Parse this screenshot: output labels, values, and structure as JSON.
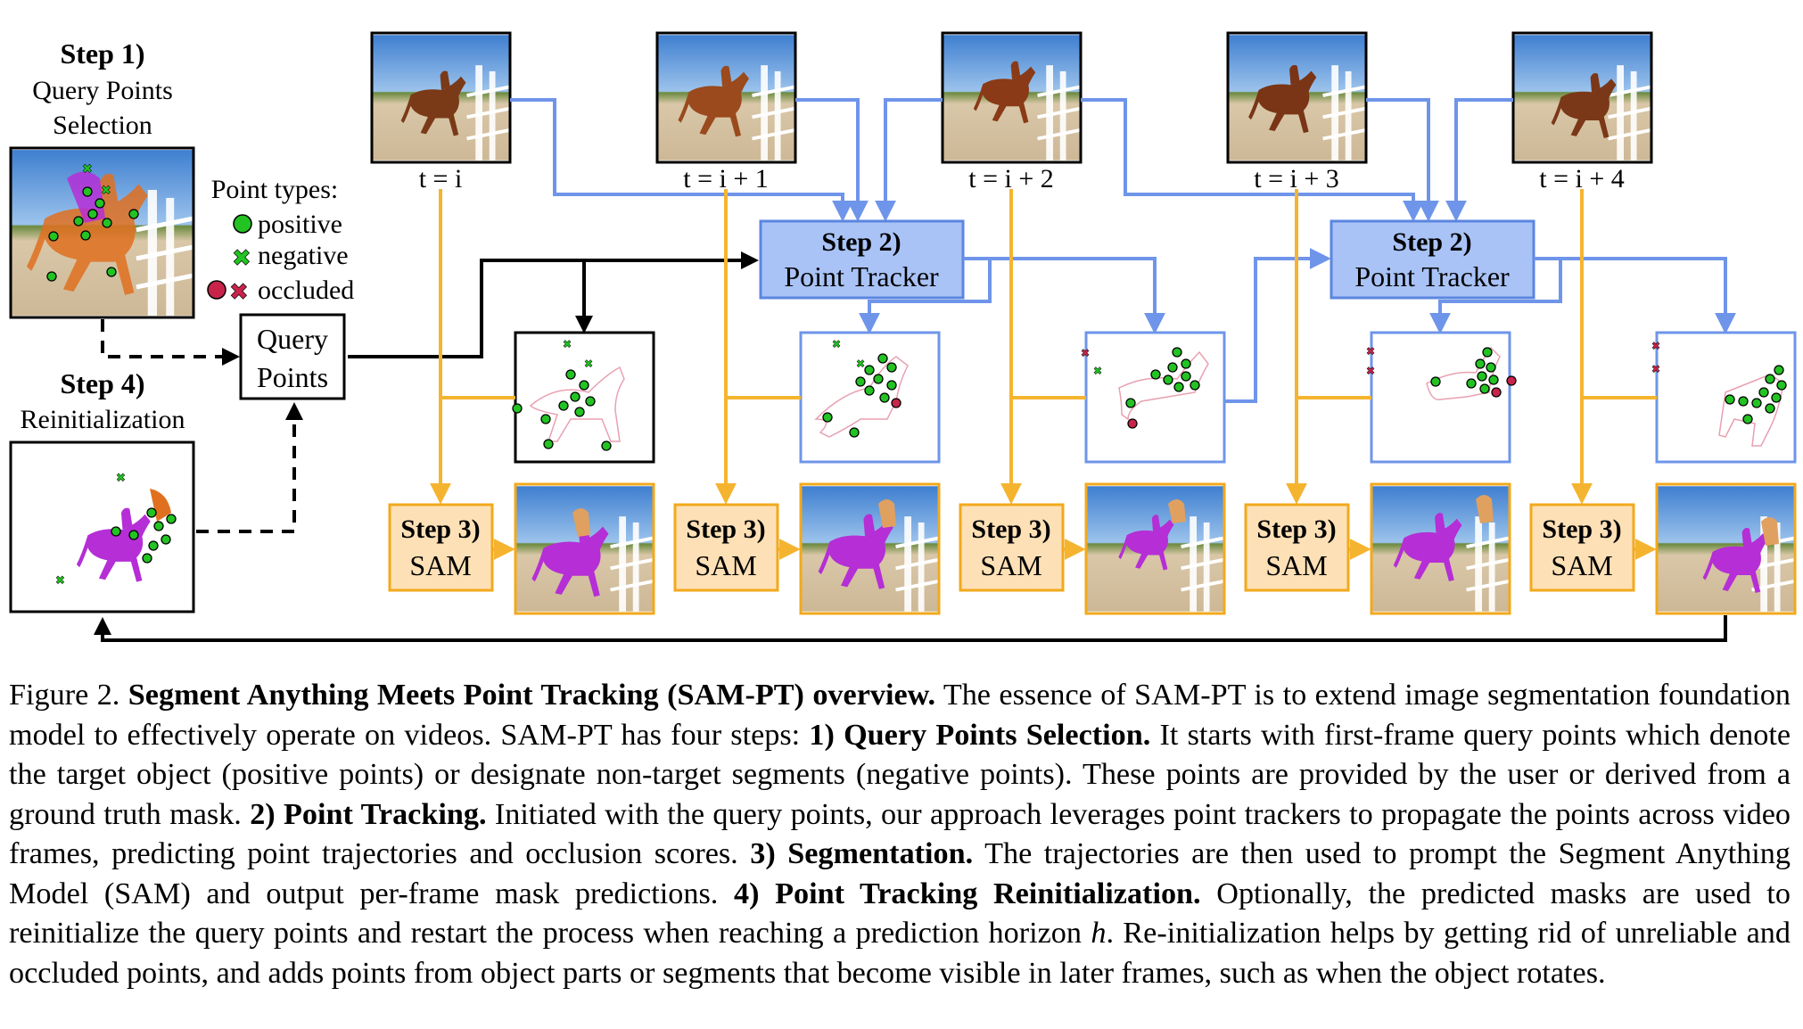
{
  "figure": {
    "step1": {
      "title": "Step 1)",
      "subtitle_line1": "Query Points",
      "subtitle_line2": "Selection"
    },
    "step4": {
      "title": "Step 4)",
      "subtitle": "Reinitialization"
    },
    "point_types": {
      "title": "Point types:",
      "positive": "positive",
      "negative": "negative",
      "occluded": "occluded"
    },
    "query_points": {
      "line1": "Query",
      "line2": "Points"
    },
    "tracker": {
      "title": "Step 2)",
      "label": "Point Tracker"
    },
    "sam": {
      "title": "Step 3)",
      "label": "SAM"
    },
    "frames": [
      "t = i",
      "t = i + 1",
      "t = i + 2",
      "t = i + 3",
      "t = i + 4"
    ],
    "colors": {
      "positive": "#22c322",
      "negative": "#22c322",
      "occluded": "#c8244a",
      "tracker_fill": "#a9c3f7",
      "tracker_edge": "#5b86e0",
      "sam_fill": "#fde0b6",
      "sam_edge": "#f2a91c",
      "mask": "#b52ed6",
      "arrow_blue": "#6f95ea",
      "arrow_orange": "#f5b430"
    }
  },
  "caption": {
    "fig_label": "Figure 2.",
    "title": "Segment Anything Meets Point Tracking (SAM-PT) overview.",
    "intro": "The essence of SAM-PT is to extend image segmentation foundation model to effectively operate on videos. SAM-PT has four steps:",
    "s1_head": "1) Query Points Selection.",
    "s1_text": "It starts with first-frame query points which denote the target object (positive points) or designate non-target segments (negative points). These points are provided by the user or derived from a ground truth mask.",
    "s2_head": "2) Point Tracking.",
    "s2_text": "Initiated with the query points, our approach leverages point trackers to propagate the points across video frames, predicting point trajectories and occlusion scores.",
    "s3_head": "3) Segmentation.",
    "s3_text": "The trajectories are then used to prompt the Segment Anything Model (SAM) and output per-frame mask predictions.",
    "s4_head": "4) Point Tracking Reinitialization.",
    "s4_text": "Optionally, the predicted masks are used to reinitialize the query points and restart the process when reaching a prediction horizon",
    "s4_var": "h",
    "s4_end": ".",
    "outro": "Re-initialization helps by getting rid of unreliable and occluded points, and adds points from object parts or segments that become visible in later frames, such as when the object rotates."
  }
}
